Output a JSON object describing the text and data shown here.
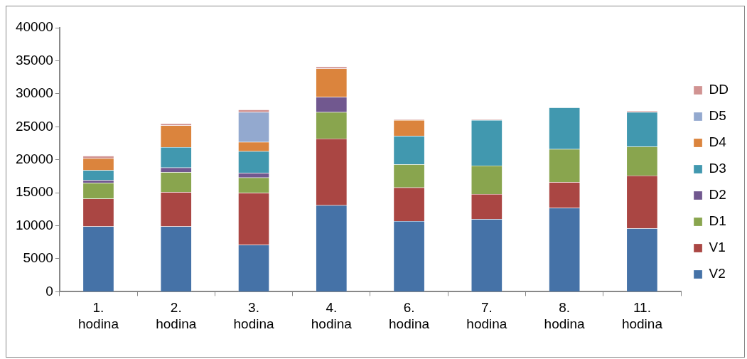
{
  "chart_data": {
    "type": "bar",
    "stacked": true,
    "categories": [
      "1. hodina",
      "2. hodina",
      "3. hodina",
      "4. hodina",
      "6. hodina",
      "7. hodina",
      "8. hodina",
      "11. hodina"
    ],
    "series": [
      {
        "name": "V2",
        "color": "#4572a7",
        "values": [
          9900,
          9900,
          7100,
          13100,
          10700,
          11000,
          12700,
          9600
        ]
      },
      {
        "name": "V1",
        "color": "#aa4643",
        "values": [
          4200,
          5200,
          7900,
          10100,
          5100,
          3800,
          3900,
          8000
        ]
      },
      {
        "name": "D1",
        "color": "#89a54e",
        "values": [
          2400,
          3000,
          2300,
          4000,
          3500,
          4300,
          5000,
          4400
        ]
      },
      {
        "name": "D2",
        "color": "#71588f",
        "values": [
          400,
          700,
          700,
          2300,
          0,
          0,
          0,
          0
        ]
      },
      {
        "name": "D3",
        "color": "#4198af",
        "values": [
          1500,
          3100,
          3300,
          0,
          4300,
          6900,
          6300,
          5200
        ]
      },
      {
        "name": "D4",
        "color": "#db843d",
        "values": [
          1800,
          3300,
          1400,
          4300,
          2400,
          0,
          0,
          0
        ]
      },
      {
        "name": "D5",
        "color": "#93a9cf",
        "values": [
          0,
          0,
          4500,
          0,
          0,
          0,
          0,
          0
        ]
      },
      {
        "name": "DD",
        "color": "#d19392",
        "values": [
          400,
          300,
          400,
          300,
          100,
          100,
          0,
          200
        ]
      }
    ],
    "ylim": [
      0,
      40000
    ],
    "yticks": [
      0,
      5000,
      10000,
      15000,
      20000,
      25000,
      30000,
      35000,
      40000
    ],
    "grid": false,
    "legend": "right"
  }
}
